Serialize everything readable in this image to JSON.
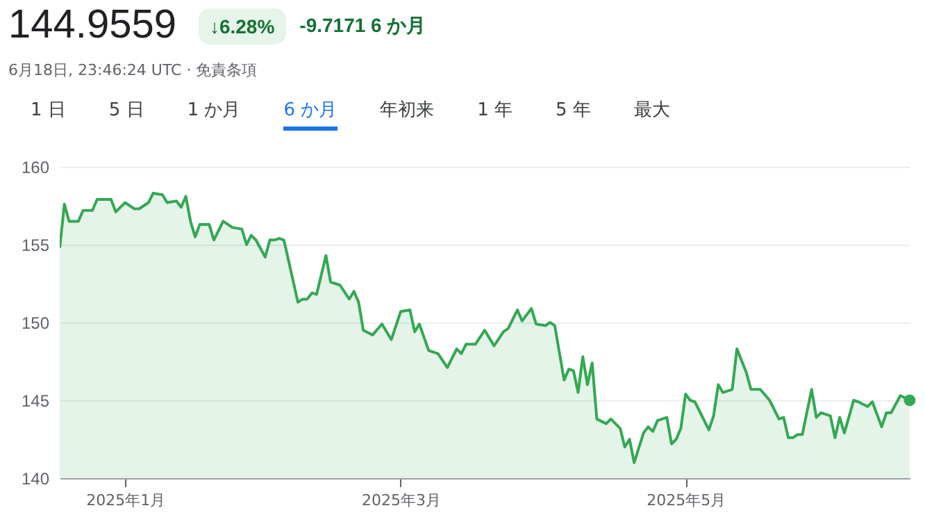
{
  "chart_data": {
    "type": "area",
    "title": "144.9559",
    "subtitle": "6月18日, 23:46:24 UTC · 免責条項",
    "annotations": [
      "↓6.28%",
      "-9.7171 6 か月",
      "1 日",
      "5 日",
      "1 か月",
      "6 か月",
      "年初来",
      "1 年",
      "5 年",
      "最大"
    ],
    "x": [
      "2024-12-18",
      "2024-12-19",
      "2024-12-20",
      "2024-12-22",
      "2024-12-23",
      "2024-12-25",
      "2024-12-26",
      "2024-12-29",
      "2024-12-30",
      "2025-01-01",
      "2025-01-03",
      "2025-01-04",
      "2025-01-06",
      "2025-01-07",
      "2025-01-09",
      "2025-01-10",
      "2025-01-12",
      "2025-01-13",
      "2025-01-14",
      "2025-01-15",
      "2025-01-16",
      "2025-01-17",
      "2025-01-19",
      "2025-01-20",
      "2025-01-22",
      "2025-01-24",
      "2025-01-26",
      "2025-01-27",
      "2025-01-28",
      "2025-01-29",
      "2025-01-31",
      "2025-02-01",
      "2025-02-02",
      "2025-02-03",
      "2025-02-04",
      "2025-02-07",
      "2025-02-08",
      "2025-02-09",
      "2025-02-10",
      "2025-02-11",
      "2025-02-13",
      "2025-02-14",
      "2025-02-16",
      "2025-02-18",
      "2025-02-19",
      "2025-02-20",
      "2025-02-21",
      "2025-02-23",
      "2025-02-25",
      "2025-02-27",
      "2025-03-01",
      "2025-03-03",
      "2025-03-04",
      "2025-03-05",
      "2025-03-07",
      "2025-03-09",
      "2025-03-11",
      "2025-03-13",
      "2025-03-14",
      "2025-03-15",
      "2025-03-17",
      "2025-03-19",
      "2025-03-21",
      "2025-03-23",
      "2025-03-24",
      "2025-03-26",
      "2025-03-27",
      "2025-03-29",
      "2025-03-30",
      "2025-04-01",
      "2025-04-02",
      "2025-04-03",
      "2025-04-05",
      "2025-04-06",
      "2025-04-07",
      "2025-04-08",
      "2025-04-09",
      "2025-04-10",
      "2025-04-11",
      "2025-04-12",
      "2025-04-14",
      "2025-04-15",
      "2025-04-17",
      "2025-04-18",
      "2025-04-19",
      "2025-04-20",
      "2025-04-22",
      "2025-04-23",
      "2025-04-24",
      "2025-04-25",
      "2025-04-27",
      "2025-04-28",
      "2025-04-29",
      "2025-04-30",
      "2025-05-01",
      "2025-05-02",
      "2025-05-03",
      "2025-05-06",
      "2025-05-07",
      "2025-05-08",
      "2025-05-09",
      "2025-05-11",
      "2025-05-12",
      "2025-05-14",
      "2025-05-15",
      "2025-05-17",
      "2025-05-19",
      "2025-05-21",
      "2025-05-22",
      "2025-05-23",
      "2025-05-24",
      "2025-05-25",
      "2025-05-26",
      "2025-05-28",
      "2025-05-29",
      "2025-05-30",
      "2025-06-01",
      "2025-06-02",
      "2025-06-03",
      "2025-06-04",
      "2025-06-06",
      "2025-06-07",
      "2025-06-09",
      "2025-06-10",
      "2025-06-12",
      "2025-06-13",
      "2025-06-14",
      "2025-06-16",
      "2025-06-18"
    ],
    "series": [
      {
        "color": "#34a853",
        "values": [
          154.8,
          157.6,
          156.5,
          156.5,
          157.2,
          157.2,
          157.9,
          157.9,
          157.1,
          157.7,
          157.3,
          157.3,
          157.7,
          158.3,
          158.2,
          157.7,
          157.8,
          157.4,
          158.1,
          156.5,
          155.5,
          156.3,
          156.3,
          155.3,
          156.5,
          156.1,
          156.0,
          155.0,
          155.6,
          155.3,
          154.2,
          155.3,
          155.3,
          155.4,
          155.3,
          151.3,
          151.5,
          151.5,
          151.9,
          151.8,
          154.3,
          152.6,
          152.4,
          151.5,
          152.0,
          151.3,
          149.5,
          149.2,
          149.9,
          148.9,
          150.7,
          150.8,
          149.4,
          149.9,
          148.2,
          148.0,
          147.1,
          148.3,
          148.0,
          148.6,
          148.6,
          149.5,
          148.5,
          149.4,
          149.6,
          150.8,
          150.1,
          150.9,
          149.9,
          149.8,
          150.0,
          149.8,
          146.3,
          147.0,
          146.9,
          145.5,
          147.8,
          146.0,
          147.4,
          143.8,
          143.5,
          143.8,
          143.2,
          142.0,
          142.5,
          141.0,
          142.9,
          143.3,
          143.0,
          143.7,
          143.9,
          142.2,
          142.5,
          143.2,
          145.4,
          145.0,
          144.9,
          143.1,
          144.0,
          146.0,
          145.5,
          145.7,
          148.3,
          146.8,
          145.7,
          145.7,
          145.0,
          143.8,
          143.9,
          142.6,
          142.6,
          142.8,
          142.8,
          145.7,
          143.9,
          144.2,
          144.0,
          142.6,
          143.9,
          142.9,
          145.0,
          144.9,
          144.6,
          144.9,
          143.3,
          144.2,
          144.2,
          145.3,
          145.0
        ]
      }
    ],
    "xlim": [
      "2024-12-18",
      "2025-06-18"
    ],
    "xticks": [
      {
        "value": "2025-01-01",
        "label": "2025年1月"
      },
      {
        "value": "2025-03-01",
        "label": "2025年3月"
      },
      {
        "value": "2025-05-01",
        "label": "2025年5月"
      }
    ],
    "ylim": [
      140,
      160
    ],
    "yticks": [
      140,
      145,
      150,
      155,
      160
    ],
    "grid": "y"
  }
}
